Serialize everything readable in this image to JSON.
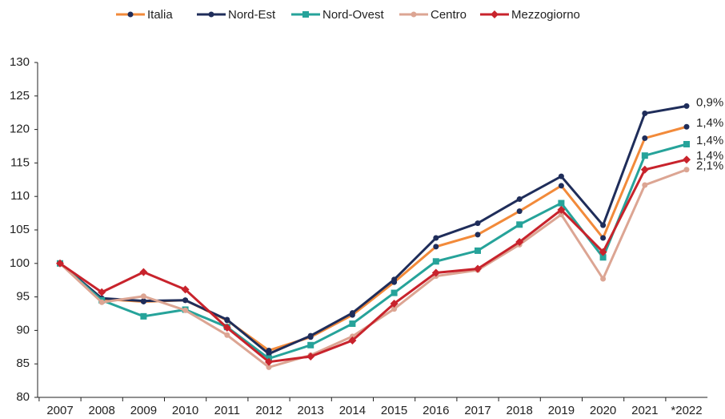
{
  "chart_data": {
    "type": "line",
    "categories": [
      "2007",
      "2008",
      "2009",
      "2010",
      "2011",
      "2012",
      "2013",
      "2014",
      "2015",
      "2016",
      "2017",
      "2018",
      "2019",
      "2020",
      "2021",
      "*2022"
    ],
    "ylim": [
      80,
      130
    ],
    "yticks": [
      80,
      85,
      90,
      95,
      100,
      105,
      110,
      115,
      120,
      125,
      130
    ],
    "grid": false,
    "legend": "top",
    "series": [
      {
        "name": "Italia",
        "color": "#f28a3a",
        "marker_color": "#1f2d5a",
        "marker": "circle",
        "end_label": "1,4%",
        "values": [
          100,
          94.7,
          94.3,
          94.5,
          91.5,
          87,
          89,
          92.3,
          97.2,
          102.5,
          104.3,
          107.8,
          111.6,
          103.8,
          118.7,
          120.4
        ]
      },
      {
        "name": "Nord-Est",
        "color": "#1f2d5a",
        "marker_color": "#1f2d5a",
        "marker": "circle",
        "end_label": "0,9%",
        "values": [
          100,
          94.8,
          94.4,
          94.5,
          91.6,
          86.5,
          89.2,
          92.6,
          97.6,
          103.8,
          106,
          109.6,
          113,
          105.7,
          122.4,
          123.5
        ]
      },
      {
        "name": "Nord-Ovest",
        "color": "#26a39a",
        "marker_color": "#26a39a",
        "marker": "square",
        "end_label": "1,4%",
        "values": [
          100,
          94.5,
          92.1,
          93.1,
          90.5,
          85.8,
          87.8,
          91,
          95.6,
          100.3,
          101.9,
          105.8,
          109,
          100.9,
          116.1,
          117.8
        ]
      },
      {
        "name": "Centro",
        "color": "#dca593",
        "marker_color": "#dca593",
        "marker": "circle",
        "end_label": "2,1%",
        "values": [
          100,
          94.2,
          95.1,
          93,
          89.3,
          84.5,
          86.3,
          89.1,
          93.2,
          98.1,
          99,
          102.8,
          107.3,
          97.7,
          111.7,
          114
        ]
      },
      {
        "name": "Mezzogiorno",
        "color": "#c8232c",
        "marker_color": "#c8232c",
        "marker": "diamond",
        "end_label": "1,4%",
        "values": [
          100,
          95.7,
          98.7,
          96.1,
          90.4,
          85.3,
          86.1,
          88.5,
          94,
          98.6,
          99.2,
          103.2,
          108,
          101.7,
          114,
          115.5
        ]
      }
    ]
  }
}
